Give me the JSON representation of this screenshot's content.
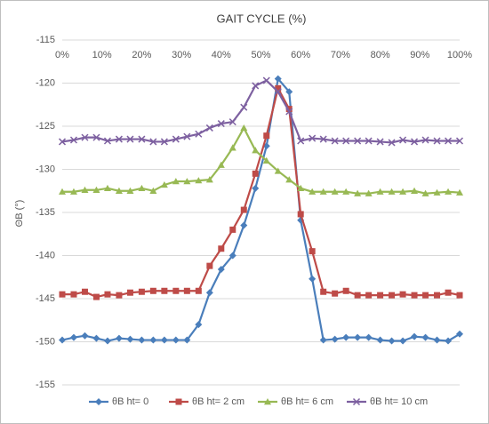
{
  "chart_data": {
    "type": "line",
    "title": "GAIT CYCLE (%)",
    "y_label": "ΘB (°)",
    "x": [
      0,
      2.9,
      5.7,
      8.6,
      11.4,
      14.3,
      17.1,
      20,
      22.9,
      25.7,
      28.6,
      31.4,
      34.3,
      37.1,
      40,
      42.9,
      45.7,
      48.6,
      51.4,
      54.3,
      57.1,
      60,
      62.9,
      65.7,
      68.6,
      71.4,
      74.3,
      77.1,
      80,
      82.9,
      85.7,
      88.6,
      91.4,
      94.3,
      97.1,
      100
    ],
    "xlim": [
      0,
      100
    ],
    "xticks": [
      {
        "value": 0,
        "label": "0%"
      },
      {
        "value": 10,
        "label": "10%"
      },
      {
        "value": 20,
        "label": "20%"
      },
      {
        "value": 30,
        "label": "30%"
      },
      {
        "value": 40,
        "label": "40%"
      },
      {
        "value": 50,
        "label": "50%"
      },
      {
        "value": 60,
        "label": "60%"
      },
      {
        "value": 70,
        "label": "70%"
      },
      {
        "value": 80,
        "label": "80%"
      },
      {
        "value": 90,
        "label": "90%"
      },
      {
        "value": 100,
        "label": "100%"
      }
    ],
    "ylim": [
      -155,
      -115
    ],
    "yticks": [
      -155,
      -150,
      -145,
      -140,
      -135,
      -130,
      -125,
      -120,
      -115
    ],
    "grid": true,
    "legend": "bottom",
    "series": [
      {
        "name": "θB ht= 0",
        "color": "#4a7ebb",
        "marker": "diamond",
        "values": [
          -149.8,
          -149.5,
          -149.3,
          -149.6,
          -149.9,
          -149.6,
          -149.7,
          -149.8,
          -149.8,
          -149.8,
          -149.8,
          -149.8,
          -148,
          -144.3,
          -141.6,
          -140,
          -136.5,
          -132.2,
          -127.3,
          -119.5,
          -121,
          -135.9,
          -142.7,
          -149.8,
          -149.7,
          -149.5,
          -149.5,
          -149.5,
          -149.8,
          -149.9,
          -149.9,
          -149.4,
          -149.5,
          -149.8,
          -149.9,
          -149.1
        ]
      },
      {
        "name": "θB ht= 2 cm",
        "color": "#be4b48",
        "marker": "square",
        "values": [
          -144.5,
          -144.5,
          -144.2,
          -144.8,
          -144.5,
          -144.6,
          -144.3,
          -144.2,
          -144.1,
          -144.1,
          -144.1,
          -144.1,
          -144.1,
          -141.2,
          -139.2,
          -137,
          -134.7,
          -130.5,
          -126.1,
          -120.6,
          -123,
          -135.2,
          -139.5,
          -144.2,
          -144.4,
          -144.1,
          -144.6,
          -144.6,
          -144.6,
          -144.6,
          -144.5,
          -144.6,
          -144.6,
          -144.6,
          -144.3,
          -144.6
        ]
      },
      {
        "name": "θB ht= 6 cm",
        "color": "#98b954",
        "marker": "triangle",
        "values": [
          -132.6,
          -132.6,
          -132.4,
          -132.4,
          -132.2,
          -132.5,
          -132.5,
          -132.2,
          -132.5,
          -131.8,
          -131.4,
          -131.4,
          -131.3,
          -131.2,
          -129.5,
          -127.5,
          -125.2,
          -127.8,
          -129,
          -130.2,
          -131.2,
          -132.2,
          -132.6,
          -132.6,
          -132.6,
          -132.6,
          -132.8,
          -132.8,
          -132.6,
          -132.6,
          -132.6,
          -132.5,
          -132.8,
          -132.7,
          -132.6,
          -132.7
        ]
      },
      {
        "name": "θB ht= 10 cm",
        "color": "#7d60a0",
        "marker": "x",
        "values": [
          -126.8,
          -126.6,
          -126.3,
          -126.3,
          -126.7,
          -126.5,
          -126.5,
          -126.5,
          -126.8,
          -126.8,
          -126.5,
          -126.2,
          -125.9,
          -125.2,
          -124.7,
          -124.5,
          -122.8,
          -120.3,
          -119.7,
          -121,
          -123.3,
          -126.7,
          -126.4,
          -126.5,
          -126.7,
          -126.7,
          -126.7,
          -126.7,
          -126.8,
          -126.9,
          -126.6,
          -126.8,
          -126.6,
          -126.7,
          -126.7,
          -126.7
        ]
      }
    ]
  }
}
